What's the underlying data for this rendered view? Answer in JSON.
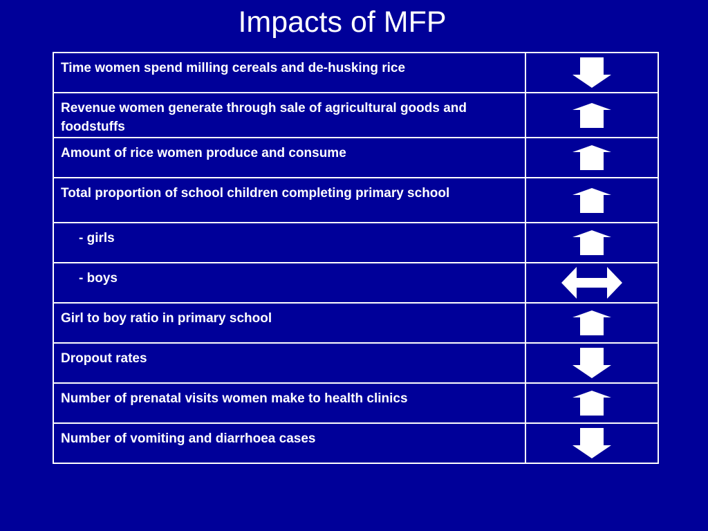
{
  "title": "Impacts of MFP",
  "colors": {
    "background": "#000099",
    "foreground": "#ffffff"
  },
  "rows": [
    {
      "label": "Time women spend milling cereals and de-husking rice",
      "direction": "down",
      "icon": "arrow-down-icon",
      "indent": false
    },
    {
      "label": "Revenue women generate through sale of agricultural goods and foodstuffs",
      "direction": "up",
      "icon": "arrow-up-icon",
      "indent": false
    },
    {
      "label": "Amount of rice women produce and consume",
      "direction": "up",
      "icon": "arrow-up-icon",
      "indent": false
    },
    {
      "label": "Total proportion of school children completing primary school",
      "direction": "up",
      "icon": "arrow-up-icon",
      "indent": false
    },
    {
      "label": "- girls",
      "direction": "up",
      "icon": "arrow-up-icon",
      "indent": true
    },
    {
      "label": "- boys",
      "direction": "both",
      "icon": "arrow-left-right-icon",
      "indent": true
    },
    {
      "label": "Girl to boy ratio in primary school",
      "direction": "up",
      "icon": "arrow-up-icon",
      "indent": false
    },
    {
      "label": "Dropout rates",
      "direction": "down",
      "icon": "arrow-down-icon",
      "indent": false
    },
    {
      "label": "Number of prenatal visits women make to health clinics",
      "direction": "up",
      "icon": "arrow-up-icon",
      "indent": false
    },
    {
      "label": "Number of vomiting and diarrhoea cases",
      "direction": "down",
      "icon": "arrow-down-icon",
      "indent": false
    }
  ]
}
